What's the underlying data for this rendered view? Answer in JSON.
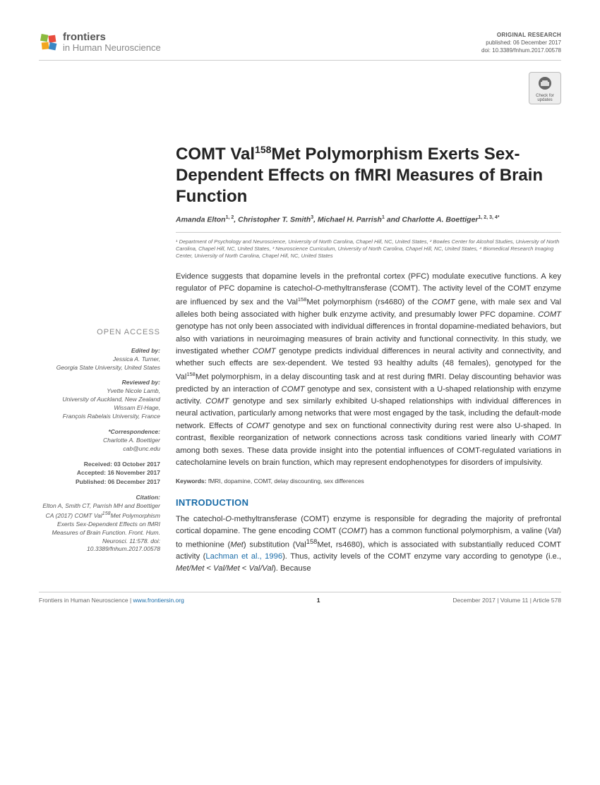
{
  "header": {
    "brand": "frontiers",
    "journal": "in Human Neuroscience",
    "pub_label": "ORIGINAL RESEARCH",
    "published": "published: 06 December 2017",
    "doi": "doi: 10.3389/fnhum.2017.00578",
    "check_updates": "Check for updates"
  },
  "title": {
    "pre": "COMT Val",
    "sup": "158",
    "post": "Met Polymorphism Exerts Sex-Dependent Effects on fMRI Measures of Brain Function"
  },
  "authors_html": "Amanda Elton<sup>1, 2</sup>, Christopher T. Smith<sup>3</sup>, Michael H. Parrish<sup>1</sup> and Charlotte A. Boettiger<sup>1, 2, 3, 4*</sup>",
  "affiliations": "¹ Department of Psychology and Neuroscience, University of North Carolina, Chapel Hill, NC, United States, ² Bowles Center for Alcohol Studies, University of North Carolina, Chapel Hill, NC, United States, ³ Neuroscience Curriculum, University of North Carolina, Chapel Hill, NC, United States, ⁴ Biomedical Research Imaging Center, University of North Carolina, Chapel Hill, NC, United States",
  "abstract_html": "Evidence suggests that dopamine levels in the prefrontal cortex (PFC) modulate executive functions. A key regulator of PFC dopamine is catechol-<i>O</i>-methyltransferase (COMT). The activity level of the COMT enzyme are influenced by sex and the Val<sup>158</sup>Met polymorphism (rs4680) of the <i>COMT</i> gene, with male sex and Val alleles both being associated with higher bulk enzyme activity, and presumably lower PFC dopamine. <i>COMT</i> genotype has not only been associated with individual differences in frontal dopamine-mediated behaviors, but also with variations in neuroimaging measures of brain activity and functional connectivity. In this study, we investigated whether <i>COMT</i> genotype predicts individual differences in neural activity and connectivity, and whether such effects are sex-dependent. We tested 93 healthy adults (48 females), genotyped for the Val<sup>158</sup>Met polymorphism, in a delay discounting task and at rest during fMRI. Delay discounting behavior was predicted by an interaction of <i>COMT</i> genotype and sex, consistent with a U-shaped relationship with enzyme activity. <i>COMT</i> genotype and sex similarly exhibited U-shaped relationships with individual differences in neural activation, particularly among networks that were most engaged by the task, including the default-mode network. Effects of <i>COMT</i> genotype and sex on functional connectivity during rest were also U-shaped. In contrast, flexible reorganization of network connections across task conditions varied linearly with <i>COMT</i> among both sexes. These data provide insight into the potential influences of COMT-regulated variations in catecholamine levels on brain function, which may represent endophenotypes for disorders of impulsivity.",
  "keywords_label": "Keywords:",
  "keywords": "fMRI, dopamine, COMT, delay discounting, sex differences",
  "intro_heading": "INTRODUCTION",
  "intro_html": "The catechol-<i>O</i>-methyltransferase (COMT) enzyme is responsible for degrading the majority of prefrontal cortical dopamine. The gene encoding COMT (<i>COMT</i>) has a common functional polymorphism, a valine (<i>Val</i>) to methionine (<i>Met</i>) substitution (Val<sup>158</sup>Met, rs4680), which is associated with substantially reduced COMT activity (<span class=\"ref\">Lachman et al., 1996</span>). Thus, activity levels of the COMT enzyme vary according to genotype (i.e., <i>Met/Met</i> &lt; <i>Val/Met</i> &lt; <i>Val/Val</i>). Because",
  "sidebar": {
    "open_access": "OPEN ACCESS",
    "edited_label": "Edited by:",
    "editor_name": "Jessica A. Turner,",
    "editor_affil": "Georgia State University, United States",
    "reviewed_label": "Reviewed by:",
    "reviewer1_name": "Yvette Nicole Lamb,",
    "reviewer1_affil": "University of Auckland, New Zealand",
    "reviewer2_name": "Wissam El-Hage,",
    "reviewer2_affil": "François Rabelais University, France",
    "corr_label": "*Correspondence:",
    "corr_name": "Charlotte A. Boettiger",
    "corr_email": "cab@unc.edu",
    "received": "Received: 03 October 2017",
    "accepted": "Accepted: 16 November 2017",
    "published": "Published: 06 December 2017",
    "citation_label": "Citation:",
    "citation_html": "Elton A, Smith CT, Parrish MH and Boettiger CA (2017) COMT Val<sup>158</sup>Met Polymorphism Exerts Sex-Dependent Effects on fMRI Measures of Brain Function. Front. Hum. Neurosci. 11:578. doi: 10.3389/fnhum.2017.00578"
  },
  "footer": {
    "left_journal": "Frontiers in Human Neuroscience",
    "left_url": "www.frontiersin.org",
    "page": "1",
    "right": "December 2017 | Volume 11 | Article 578"
  },
  "colors": {
    "accent": "#1a6ca8",
    "rule": "#cccccc",
    "muted": "#888888"
  }
}
